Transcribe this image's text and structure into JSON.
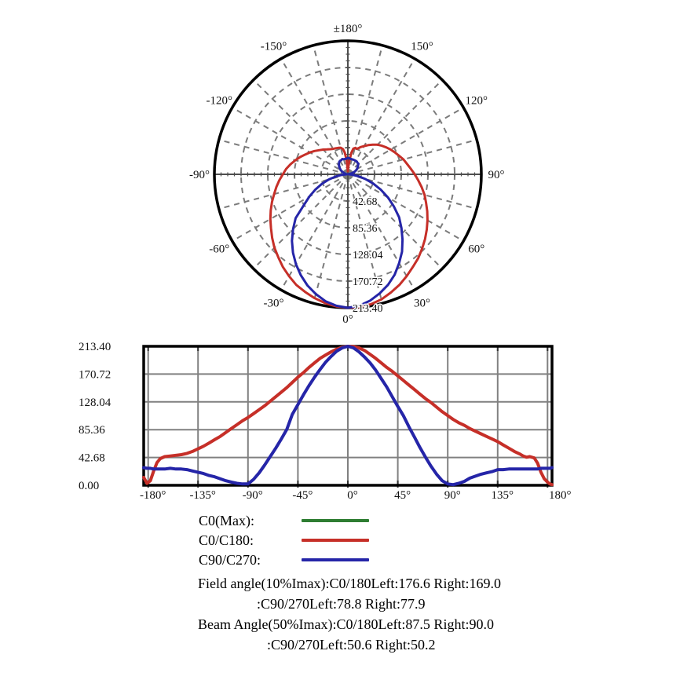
{
  "colors": {
    "c0_max_green": "#2e7d32",
    "c0_c180_red": "#c62f28",
    "c90_c270_blue": "#2525a8",
    "polar_grid_gray": "#7b7b7b",
    "polar_axis_gray": "#4e4e4e",
    "cart_grid_gray": "#808080",
    "frame_black": "#000000",
    "text_black": "#111111"
  },
  "legend": {
    "items": [
      {
        "label": "C0(Max):",
        "color": "#2e7d32"
      },
      {
        "label": "C0/C180:",
        "color": "#c62f28"
      },
      {
        "label": "C90/C270:",
        "color": "#2525a8"
      }
    ]
  },
  "stats": {
    "lines": [
      "Field angle(10%Imax):C0/180Left:176.6 Right:169.0",
      ":C90/270Left:78.8 Right:77.9",
      "Beam Angle(50%Imax):C0/180Left:87.5 Right:90.0",
      ":C90/270Left:50.6 Right:50.2"
    ]
  },
  "polar_chart": {
    "angle_labels": [
      {
        "angle_deg": 180,
        "text": "±180°"
      },
      {
        "angle_deg": -150,
        "text": "-150°"
      },
      {
        "angle_deg": 150,
        "text": "150°"
      },
      {
        "angle_deg": -120,
        "text": "-120°"
      },
      {
        "angle_deg": 120,
        "text": "120°"
      },
      {
        "angle_deg": -90,
        "text": "-90°"
      },
      {
        "angle_deg": 90,
        "text": "90°"
      },
      {
        "angle_deg": -60,
        "text": "-60°"
      },
      {
        "angle_deg": 60,
        "text": "60°"
      },
      {
        "angle_deg": -30,
        "text": "-30°"
      },
      {
        "angle_deg": 30,
        "text": "30°"
      },
      {
        "angle_deg": 0,
        "text": "0°"
      }
    ],
    "ring_labels": [
      "42.68",
      "85.36",
      "128.04",
      "170.72",
      "213.40"
    ]
  },
  "cartesian_chart": {
    "y_tick_labels": [
      "213.40",
      "170.72",
      "128.04",
      "85.36",
      "42.68",
      "0.00"
    ],
    "x_tick_labels": [
      "-180°",
      "-135°",
      "-90°",
      "-45°",
      "0°",
      "45°",
      "90°",
      "135°",
      "180°"
    ]
  },
  "shared_series": {
    "angles_deg": [
      -184,
      -181,
      -178,
      -175,
      -172,
      -169,
      -165,
      -160,
      -155,
      -150,
      -145,
      -140,
      -135,
      -130,
      -125,
      -120,
      -115,
      -110,
      -105,
      -100,
      -95,
      -90,
      -85,
      -80,
      -75,
      -70,
      -65,
      -60,
      -55,
      -50,
      -45,
      -40,
      -35,
      -30,
      -25,
      -20,
      -15,
      -10,
      -5,
      0,
      5,
      10,
      15,
      20,
      25,
      30,
      35,
      40,
      45,
      50,
      55,
      60,
      65,
      70,
      75,
      80,
      85,
      90,
      95,
      100,
      105,
      110,
      115,
      120,
      125,
      130,
      135,
      140,
      145,
      150,
      155,
      158,
      161,
      164,
      168,
      171,
      174,
      177,
      180,
      182,
      184
    ],
    "series": [
      {
        "name": "C0(Max)",
        "color": "#2e7d32",
        "plotted": false,
        "values": []
      },
      {
        "name": "C0/C180",
        "color": "#c62f28",
        "plotted": true,
        "values": [
          12,
          3,
          7,
          22,
          35,
          41,
          44,
          45,
          46,
          47,
          49,
          52,
          56,
          60,
          65,
          70,
          75,
          81,
          87,
          93,
          99,
          104,
          110,
          116,
          122,
          129,
          136,
          143,
          150,
          158,
          166,
          173,
          181,
          188,
          195,
          200,
          205,
          209,
          212,
          213.4,
          213,
          211,
          207,
          201,
          195,
          188,
          181,
          175,
          168,
          161,
          154,
          147,
          140,
          133,
          127,
          120,
          113,
          107,
          101,
          96,
          92,
          87,
          83,
          79,
          75,
          71,
          67,
          62,
          57,
          52,
          48,
          45,
          43,
          44,
          42,
          34,
          20,
          10,
          5,
          2,
          1
        ]
      },
      {
        "name": "C90/C270",
        "color": "#2525a8",
        "plotted": true,
        "values": [
          27,
          26,
          26,
          25,
          25,
          25,
          25,
          26,
          25,
          25,
          24,
          22,
          20,
          18,
          15,
          13,
          10,
          7,
          5,
          3,
          2,
          2,
          9,
          19,
          31,
          44,
          57,
          71,
          86,
          109,
          124,
          139,
          153,
          166,
          178,
          189,
          198,
          206,
          211,
          213.4,
          211,
          205,
          197,
          188,
          177,
          164,
          151,
          136,
          121,
          107,
          90,
          74,
          58,
          43,
          29,
          17,
          7,
          2,
          1,
          3,
          6,
          11,
          14,
          17,
          19,
          21,
          24,
          24,
          25,
          25,
          25,
          25,
          25,
          25,
          25,
          25,
          26,
          26,
          26,
          26,
          27
        ]
      }
    ]
  },
  "chart_data": [
    {
      "id": "polar-intensity-distribution",
      "type": "polar",
      "title": "",
      "orientation": "0deg-at-bottom, negative-angles-left",
      "rmax": 213.4,
      "r_ticks": [
        42.68,
        85.36,
        128.04,
        170.72,
        213.4
      ],
      "angle_grid_step_deg": 15,
      "angle_label_step_deg": 30,
      "grid": true,
      "series_source": "shared_series"
    },
    {
      "id": "cartesian-intensity-distribution",
      "type": "line",
      "title": "",
      "xlabel": "",
      "ylabel": "",
      "xlim": [
        -184,
        184
      ],
      "ylim": [
        0,
        213.4
      ],
      "x_ticks_deg": [
        -180,
        -135,
        -90,
        -45,
        0,
        45,
        90,
        135,
        180
      ],
      "y_ticks": [
        0,
        42.68,
        85.36,
        128.04,
        170.72,
        213.4
      ],
      "grid": true,
      "legend_position": "below",
      "series_source": "shared_series"
    }
  ]
}
